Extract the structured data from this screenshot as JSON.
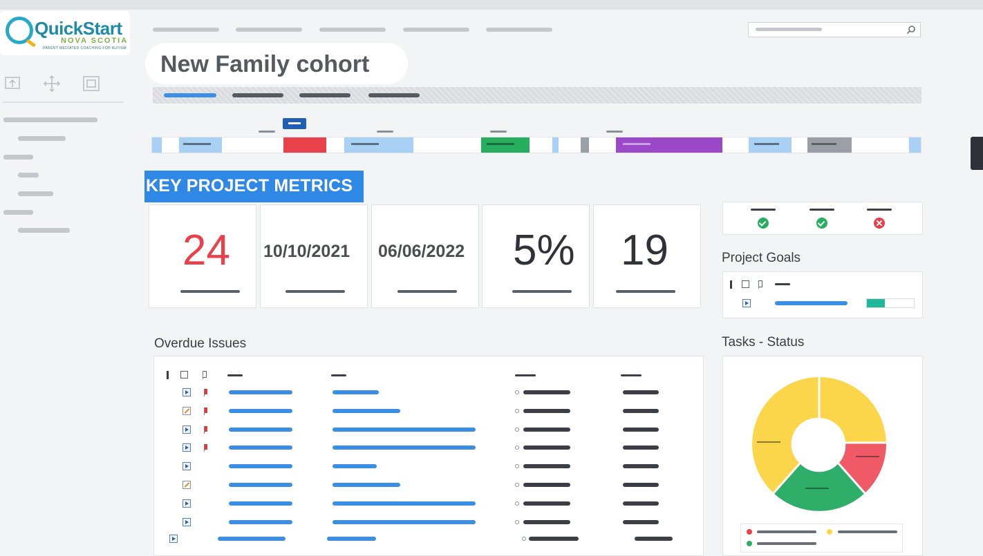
{
  "brand": {
    "name": "QuickStart",
    "region": "NOVA SCOTIA",
    "tagline": "PARENT MEDIATED COACHING FOR AUTISM"
  },
  "page": {
    "title": "New Family cohort"
  },
  "metrics": {
    "section_label": "KEY PROJECT METRICS",
    "cards": [
      {
        "value": "24",
        "color": "#e8414c"
      },
      {
        "value": "10/10/2021"
      },
      {
        "value": "06/06/2022"
      },
      {
        "value": "5%"
      },
      {
        "value": "19"
      }
    ]
  },
  "overdue": {
    "heading": "Overdue Issues",
    "rows": [
      {
        "icon": "play-icon",
        "flag": true
      },
      {
        "icon": "edit-icon",
        "flag": true
      },
      {
        "icon": "play-icon",
        "flag": true
      },
      {
        "icon": "play-icon",
        "flag": true
      },
      {
        "icon": "play-icon",
        "flag": false
      },
      {
        "icon": "edit-icon",
        "flag": false
      },
      {
        "icon": "play-icon",
        "flag": false
      },
      {
        "icon": "play-icon",
        "flag": false
      },
      {
        "icon": "play-icon",
        "flag": false
      }
    ]
  },
  "status_icons": [
    "check-icon",
    "check-icon",
    "error-icon"
  ],
  "goals": {
    "heading": "Project Goals",
    "progress": 0.38
  },
  "tasks": {
    "heading": "Tasks - Status",
    "colors": {
      "yellow": "#fbd64a",
      "red": "#ef5a66",
      "green": "#2fae6a"
    }
  },
  "timeline_colors": [
    "#a9d0f5",
    "#e8414c",
    "#a9d0f5",
    "#27ae60",
    "#a9d0f5",
    "#9aa0a6",
    "#9b48c9",
    "#a9d0f5",
    "#9aa0a6",
    "#a9d0f5"
  ],
  "colors": {
    "accent": "#2f88e6",
    "link_bar": "#3b8ee6"
  }
}
